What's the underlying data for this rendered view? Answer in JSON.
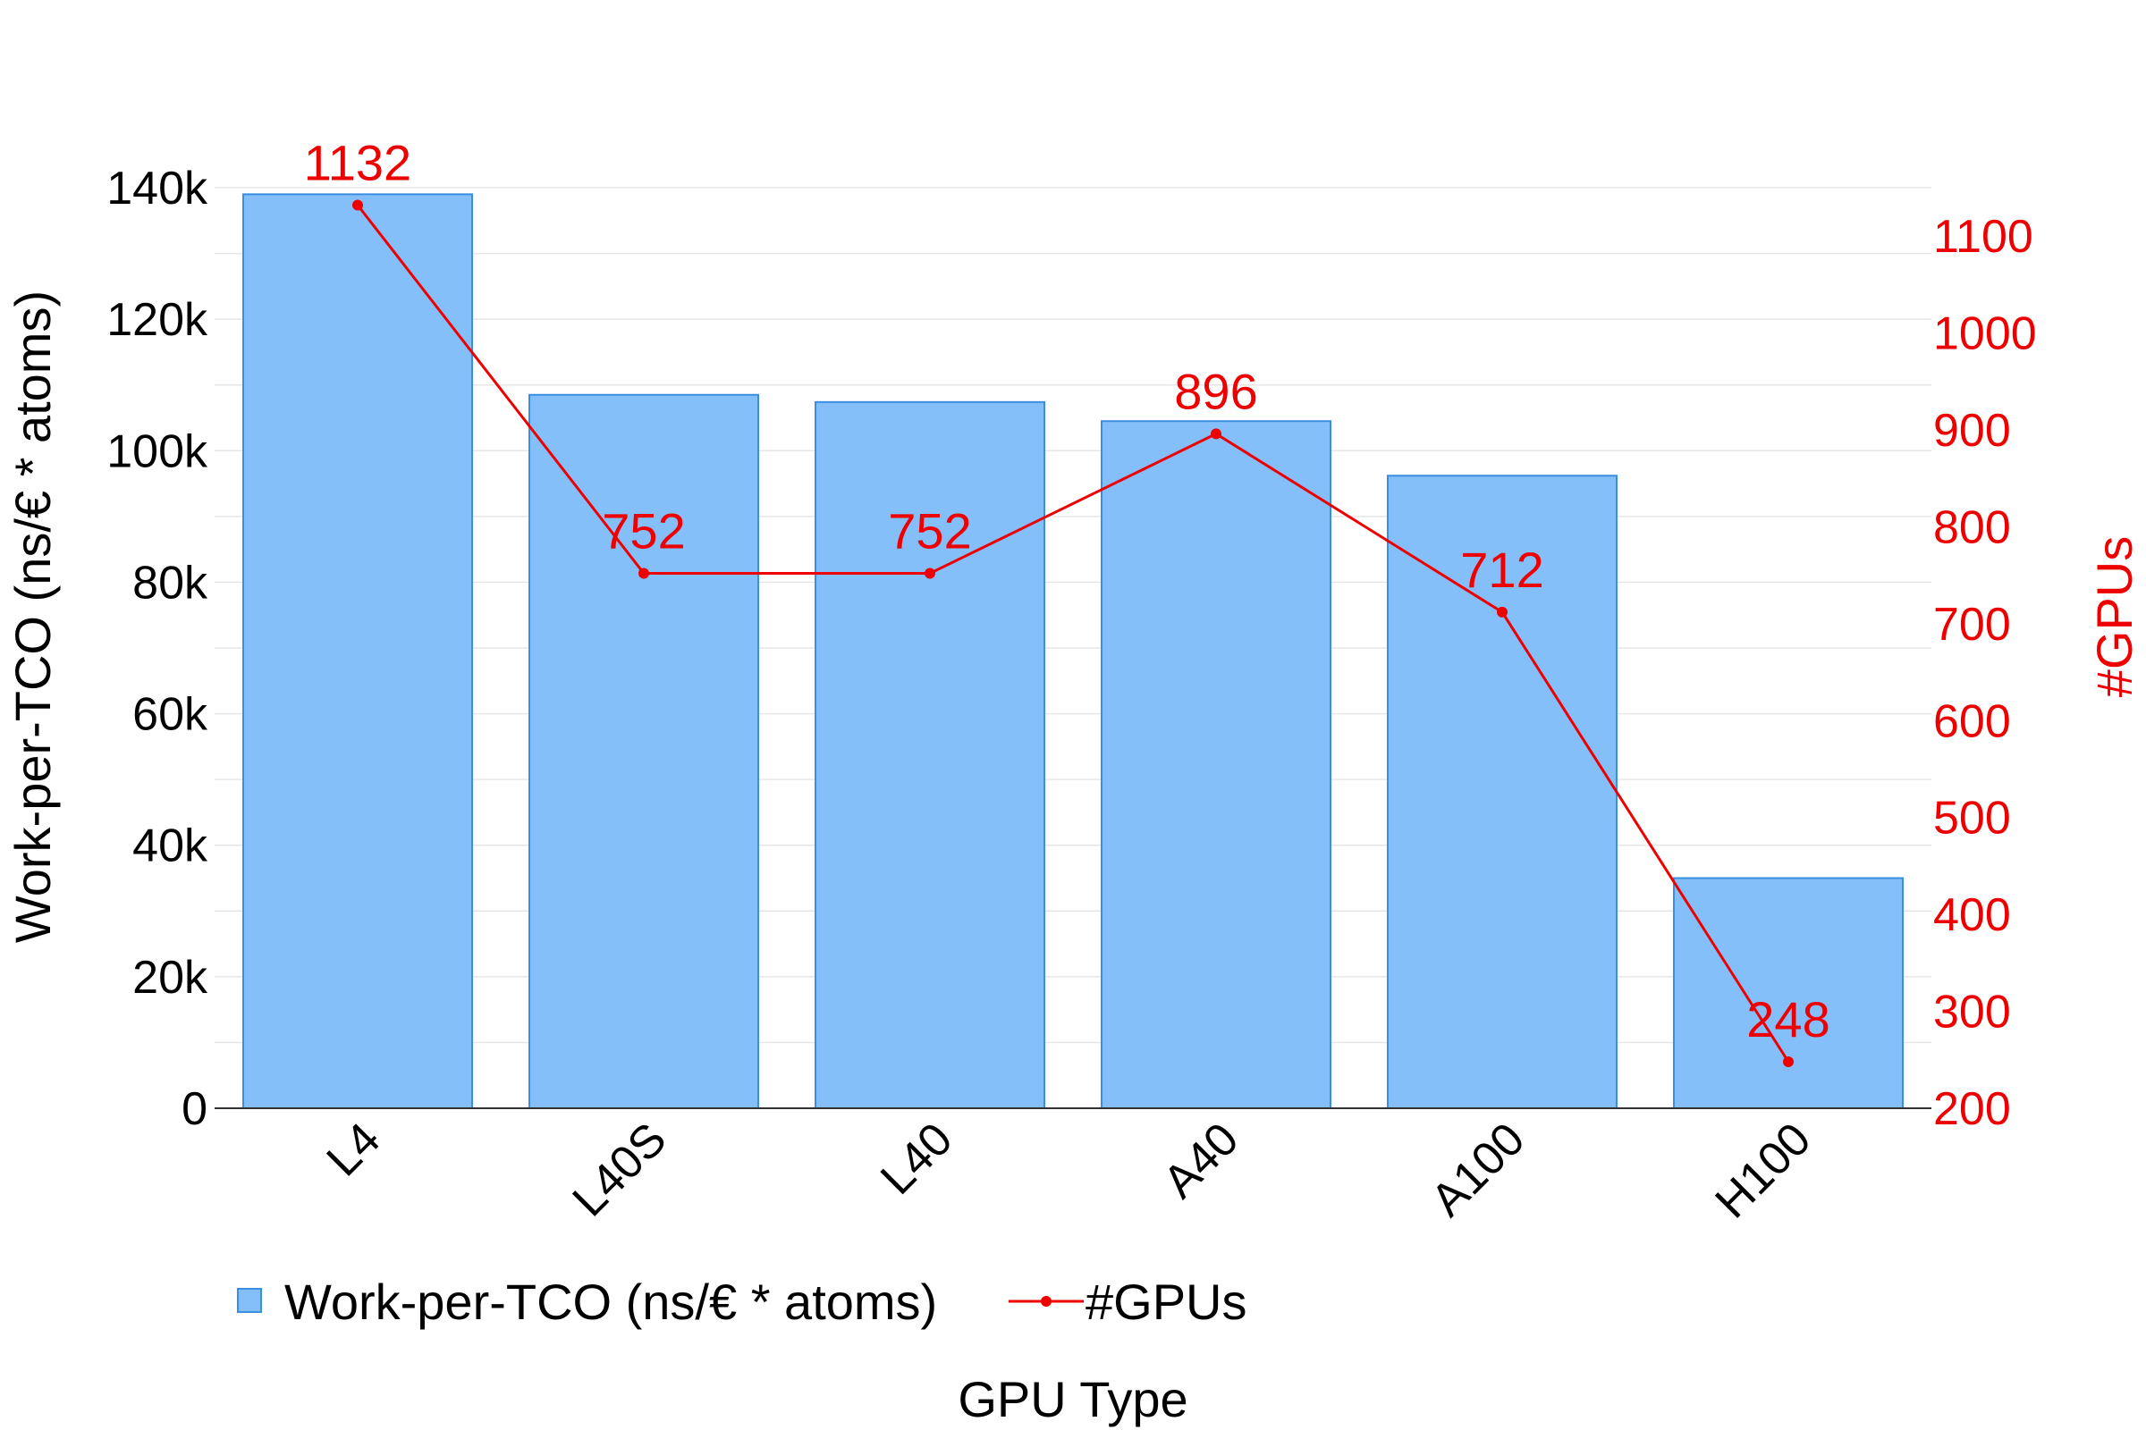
{
  "chart_data": {
    "type": "bar",
    "categories": [
      "L4",
      "L40S",
      "L40",
      "A40",
      "A100",
      "H100"
    ],
    "series": [
      {
        "name": "Work-per-TCO (ns/€ * atoms)",
        "type": "bar",
        "axis": "left",
        "values": [
          139000,
          108500,
          107400,
          104500,
          96200,
          35000
        ]
      },
      {
        "name": "#GPUs",
        "type": "line",
        "axis": "right",
        "values": [
          1132,
          752,
          752,
          896,
          712,
          248
        ],
        "labels": [
          "1132",
          "752",
          "752",
          "896",
          "712",
          "248"
        ]
      }
    ],
    "title": "",
    "xlabel": "GPU Type",
    "ylabel": "Work-per-TCO (ns/€ * atoms)",
    "y2label": "#GPUs",
    "ylim": [
      0,
      140000
    ],
    "y2lim": [
      200,
      1150
    ],
    "yticks": [
      "0",
      "20k",
      "40k",
      "60k",
      "80k",
      "100k",
      "120k",
      "140k"
    ],
    "yticks_values": [
      0,
      20000,
      40000,
      60000,
      80000,
      100000,
      120000,
      140000
    ],
    "y2ticks": [
      "200",
      "300",
      "400",
      "500",
      "600",
      "700",
      "800",
      "900",
      "1000",
      "1100"
    ],
    "y2ticks_values": [
      200,
      300,
      400,
      500,
      600,
      700,
      800,
      900,
      1000,
      1100
    ],
    "legend_position": "bottom",
    "grid": true,
    "colors": {
      "bar_fill": "#85bff9",
      "bar_stroke": "#3b8fe0",
      "line": "#ee0000",
      "grid": "#e6e6e6",
      "axis": "#333333",
      "text": "#000000"
    }
  }
}
